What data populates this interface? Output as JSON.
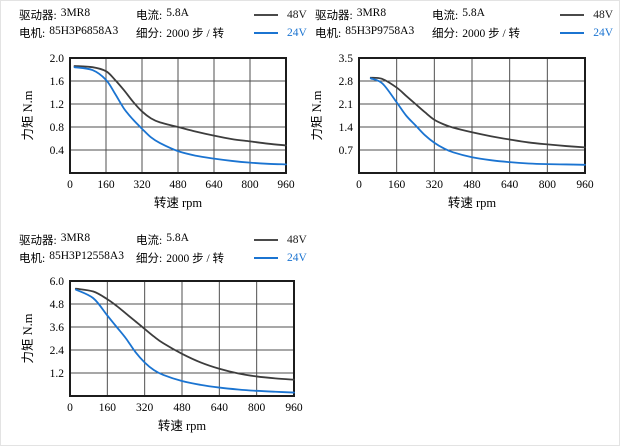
{
  "colors": {
    "line_48v": "#3d3d3d",
    "line_24v": "#1b74d1",
    "grid": "#4f4f4f",
    "axis_border": "#1c1c1c",
    "text": "#000000",
    "background": "#ffffff"
  },
  "charts": [
    {
      "header": {
        "driver_label": "驱动器:",
        "driver_value": "3MR8",
        "current_label": "电流:",
        "current_value": "5.8A",
        "motor_label": "电机:",
        "motor_value": "85H3P6858A3",
        "subdivision_label": "细分:",
        "subdivision_value": "2000 步 / 转"
      },
      "legend": {
        "v48": "48V",
        "v24": "24V"
      }
    },
    {
      "header": {
        "driver_label": "驱动器:",
        "driver_value": "3MR8",
        "current_label": "电流:",
        "current_value": "5.8A",
        "motor_label": "电机:",
        "motor_value": "85H3P9758A3",
        "subdivision_label": "细分:",
        "subdivision_value": "2000 步 / 转"
      },
      "legend": {
        "v48": "48V",
        "v24": "24V"
      }
    },
    {
      "header": {
        "driver_label": "驱动器:",
        "driver_value": "3MR8",
        "current_label": "电流:",
        "current_value": "5.8A",
        "motor_label": "电机:",
        "motor_value": "85H3P12558A3",
        "subdivision_label": "细分:",
        "subdivision_value": "2000 步 / 转"
      },
      "legend": {
        "v48": "48V",
        "v24": "24V"
      }
    }
  ],
  "chart_data": [
    {
      "type": "line",
      "title": "85H3P6858A3 torque-speed curve",
      "xlabel": "转速  rpm",
      "ylabel": "力矩  N.m",
      "xlim": [
        0,
        960
      ],
      "ylim": [
        0,
        2.0
      ],
      "xticks": [
        0,
        160,
        320,
        480,
        640,
        800,
        960
      ],
      "yticks": [
        0.4,
        0.8,
        1.2,
        1.6,
        2.0
      ],
      "ytick_labels": [
        "0.4",
        "0.8",
        "1.2",
        "1.6",
        "2.0"
      ],
      "grid": true,
      "legend_position": "top-right",
      "series": [
        {
          "name": "48V",
          "color": "#3d3d3d",
          "points": [
            [
              20,
              1.86
            ],
            [
              100,
              1.84
            ],
            [
              160,
              1.77
            ],
            [
              200,
              1.62
            ],
            [
              240,
              1.44
            ],
            [
              280,
              1.24
            ],
            [
              320,
              1.07
            ],
            [
              360,
              0.95
            ],
            [
              400,
              0.88
            ],
            [
              480,
              0.8
            ],
            [
              560,
              0.72
            ],
            [
              640,
              0.65
            ],
            [
              720,
              0.59
            ],
            [
              800,
              0.55
            ],
            [
              880,
              0.51
            ],
            [
              960,
              0.48
            ]
          ]
        },
        {
          "name": "24V",
          "color": "#1b74d1",
          "points": [
            [
              20,
              1.84
            ],
            [
              100,
              1.79
            ],
            [
              160,
              1.62
            ],
            [
              200,
              1.38
            ],
            [
              240,
              1.12
            ],
            [
              280,
              0.93
            ],
            [
              320,
              0.77
            ],
            [
              360,
              0.62
            ],
            [
              400,
              0.52
            ],
            [
              480,
              0.38
            ],
            [
              560,
              0.3
            ],
            [
              640,
              0.25
            ],
            [
              720,
              0.21
            ],
            [
              800,
              0.18
            ],
            [
              880,
              0.16
            ],
            [
              960,
              0.15
            ]
          ]
        }
      ]
    },
    {
      "type": "line",
      "title": "85H3P9758A3 torque-speed curve",
      "xlabel": "转速  rpm",
      "ylabel": "力矩  N.m",
      "xlim": [
        0,
        960
      ],
      "ylim": [
        0,
        3.5
      ],
      "xticks": [
        0,
        160,
        320,
        480,
        640,
        800,
        960
      ],
      "yticks": [
        0.7,
        1.4,
        2.1,
        2.8,
        3.5
      ],
      "ytick_labels": [
        "0.7",
        "1.4",
        "2.1",
        "2.8",
        "3.5"
      ],
      "grid": true,
      "legend_position": "top-right",
      "series": [
        {
          "name": "48V",
          "color": "#3d3d3d",
          "points": [
            [
              50,
              2.9
            ],
            [
              100,
              2.86
            ],
            [
              160,
              2.6
            ],
            [
              200,
              2.35
            ],
            [
              240,
              2.1
            ],
            [
              280,
              1.85
            ],
            [
              320,
              1.62
            ],
            [
              360,
              1.48
            ],
            [
              400,
              1.38
            ],
            [
              480,
              1.24
            ],
            [
              560,
              1.12
            ],
            [
              640,
              1.02
            ],
            [
              720,
              0.93
            ],
            [
              800,
              0.87
            ],
            [
              880,
              0.82
            ],
            [
              960,
              0.78
            ]
          ]
        },
        {
          "name": "24V",
          "color": "#1b74d1",
          "points": [
            [
              50,
              2.88
            ],
            [
              100,
              2.72
            ],
            [
              160,
              2.15
            ],
            [
              200,
              1.75
            ],
            [
              240,
              1.45
            ],
            [
              280,
              1.15
            ],
            [
              320,
              0.92
            ],
            [
              360,
              0.75
            ],
            [
              400,
              0.63
            ],
            [
              480,
              0.48
            ],
            [
              560,
              0.39
            ],
            [
              640,
              0.33
            ],
            [
              720,
              0.29
            ],
            [
              800,
              0.27
            ],
            [
              880,
              0.26
            ],
            [
              960,
              0.25
            ]
          ]
        }
      ]
    },
    {
      "type": "line",
      "title": "85H3P12558A3 torque-speed curve",
      "xlabel": "转速  rpm",
      "ylabel": "力矩  N.m",
      "xlim": [
        0,
        960
      ],
      "ylim": [
        0,
        6.0
      ],
      "xticks": [
        0,
        160,
        320,
        480,
        640,
        800,
        960
      ],
      "yticks": [
        1.2,
        2.4,
        3.6,
        4.8,
        6.0
      ],
      "ytick_labels": [
        "1.2",
        "2.4",
        "3.6",
        "4.8",
        "6.0"
      ],
      "grid": true,
      "legend_position": "top-right",
      "series": [
        {
          "name": "48V",
          "color": "#3d3d3d",
          "points": [
            [
              25,
              5.6
            ],
            [
              100,
              5.45
            ],
            [
              160,
              5.05
            ],
            [
              200,
              4.7
            ],
            [
              240,
              4.3
            ],
            [
              280,
              3.9
            ],
            [
              320,
              3.5
            ],
            [
              360,
              3.1
            ],
            [
              400,
              2.75
            ],
            [
              480,
              2.2
            ],
            [
              560,
              1.75
            ],
            [
              640,
              1.42
            ],
            [
              720,
              1.18
            ],
            [
              800,
              1.02
            ],
            [
              880,
              0.92
            ],
            [
              960,
              0.85
            ]
          ]
        },
        {
          "name": "24V",
          "color": "#1b74d1",
          "points": [
            [
              25,
              5.55
            ],
            [
              100,
              5.1
            ],
            [
              160,
              4.2
            ],
            [
              200,
              3.6
            ],
            [
              240,
              3.0
            ],
            [
              280,
              2.3
            ],
            [
              320,
              1.75
            ],
            [
              360,
              1.35
            ],
            [
              400,
              1.1
            ],
            [
              480,
              0.78
            ],
            [
              560,
              0.58
            ],
            [
              640,
              0.44
            ],
            [
              720,
              0.34
            ],
            [
              800,
              0.27
            ],
            [
              880,
              0.22
            ],
            [
              960,
              0.18
            ]
          ]
        }
      ]
    }
  ]
}
